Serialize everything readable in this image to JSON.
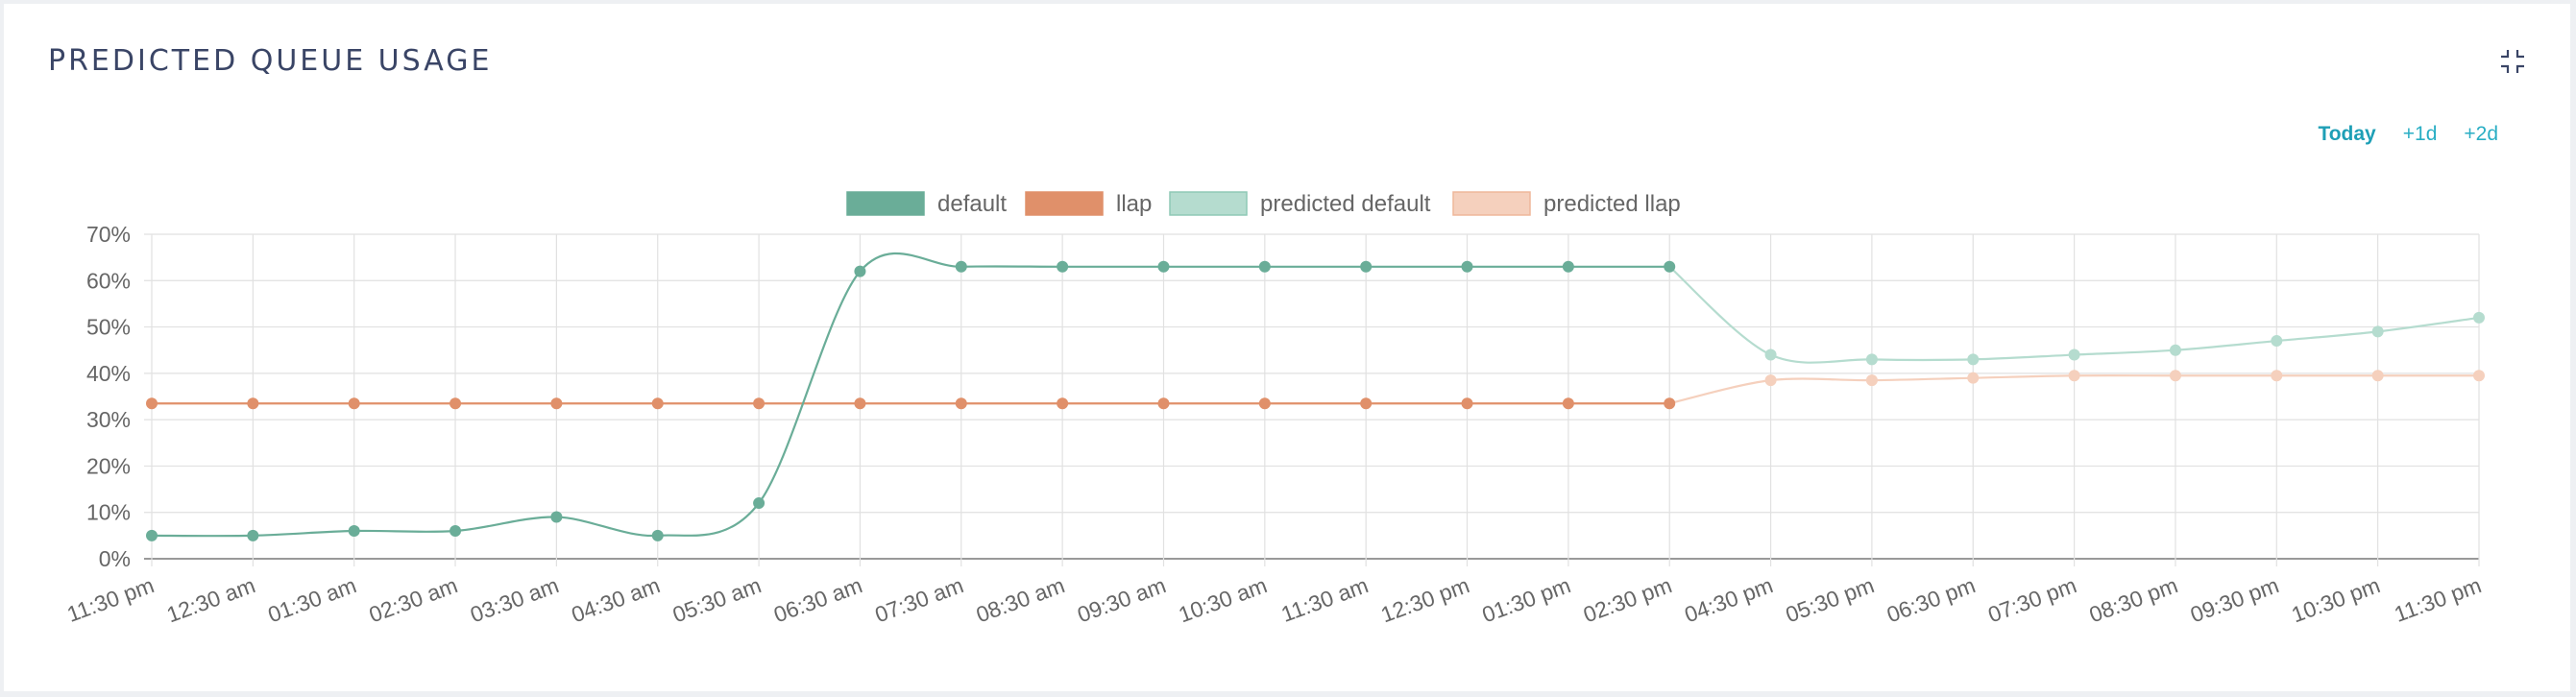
{
  "panel": {
    "title": "PREDICTED QUEUE USAGE",
    "collapse_icon": "collapse-icon"
  },
  "ranges": {
    "items": [
      {
        "label": "Today",
        "active": true
      },
      {
        "label": "+1d",
        "active": false
      },
      {
        "label": "+2d",
        "active": false
      }
    ]
  },
  "colors": {
    "default": "#6aad98",
    "llap": "#e0906a",
    "predicted_default": "#b5dccf",
    "predicted_llap": "#f5d0bd",
    "accent": "#29aec4",
    "title": "#3a4566"
  },
  "chart_data": {
    "type": "line",
    "categories": [
      "11:30 pm",
      "12:30 am",
      "01:30 am",
      "02:30 am",
      "03:30 am",
      "04:30 am",
      "05:30 am",
      "06:30 am",
      "07:30 am",
      "08:30 am",
      "09:30 am",
      "10:30 am",
      "11:30 am",
      "12:30 pm",
      "01:30 pm",
      "02:30 pm",
      "04:30 pm",
      "05:30 pm",
      "06:30 pm",
      "07:30 pm",
      "08:30 pm",
      "09:30 pm",
      "10:30 pm",
      "11:30 pm"
    ],
    "ylim": [
      0,
      70
    ],
    "yticks": [
      "0%",
      "10%",
      "20%",
      "30%",
      "40%",
      "50%",
      "60%",
      "70%"
    ],
    "legend_position": "top-center",
    "grid": true,
    "series": [
      {
        "name": "default",
        "key": "default",
        "values": [
          5,
          5,
          6,
          6,
          9,
          5,
          12,
          62,
          63,
          63,
          63,
          63,
          63,
          63,
          63,
          63,
          null,
          null,
          null,
          null,
          null,
          null,
          null,
          null
        ]
      },
      {
        "name": "llap",
        "key": "llap",
        "values": [
          33.5,
          33.5,
          33.5,
          33.5,
          33.5,
          33.5,
          33.5,
          33.5,
          33.5,
          33.5,
          33.5,
          33.5,
          33.5,
          33.5,
          33.5,
          33.5,
          null,
          null,
          null,
          null,
          null,
          null,
          null,
          null
        ]
      },
      {
        "name": "predicted default",
        "key": "predicted_default",
        "values": [
          null,
          null,
          null,
          null,
          null,
          null,
          null,
          null,
          null,
          null,
          null,
          null,
          null,
          null,
          null,
          63,
          44,
          43,
          43,
          44,
          45,
          47,
          49,
          52
        ]
      },
      {
        "name": "predicted llap",
        "key": "predicted_llap",
        "values": [
          null,
          null,
          null,
          null,
          null,
          null,
          null,
          null,
          null,
          null,
          null,
          null,
          null,
          null,
          null,
          33.5,
          38.5,
          38.5,
          39,
          39.5,
          39.5,
          39.5,
          39.5,
          39.5
        ]
      }
    ]
  }
}
